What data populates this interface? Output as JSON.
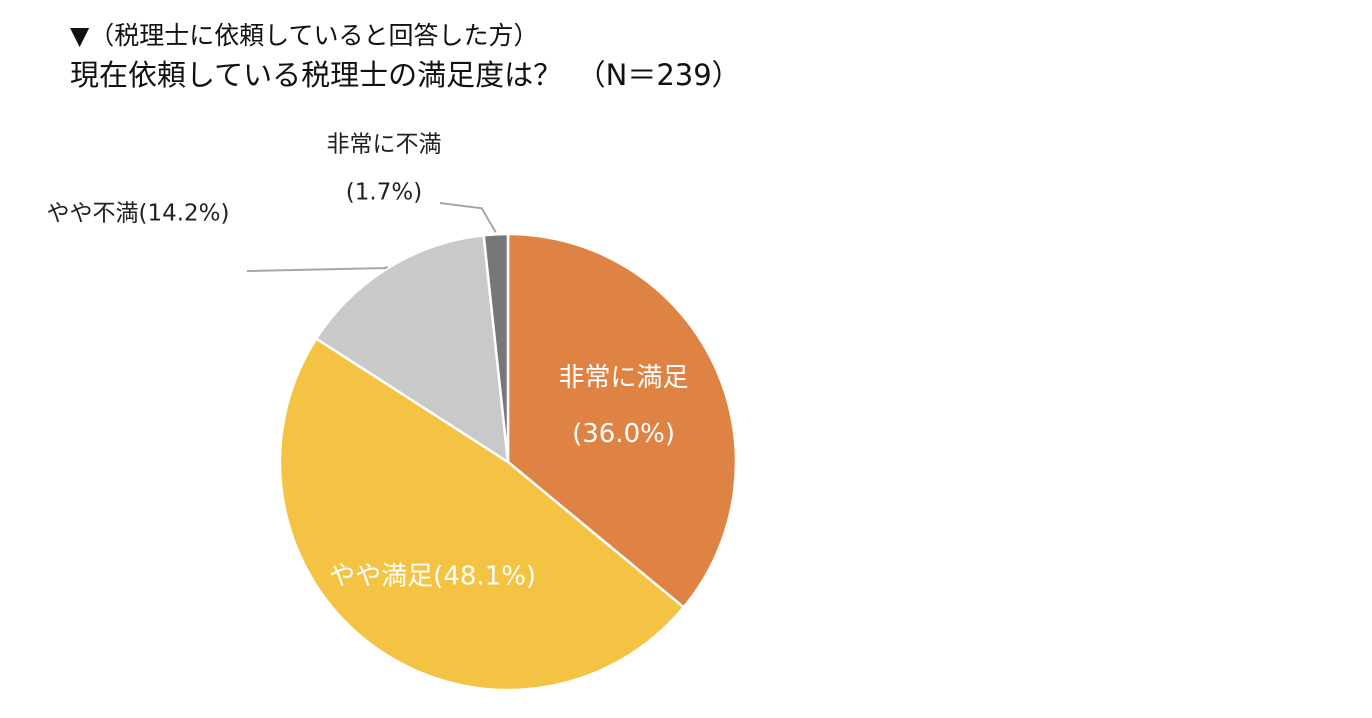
{
  "header": {
    "subtitle": "▼（税理士に依頼していると回答した方）",
    "title": "現在依頼している税理士の満足度は？　（N＝239）"
  },
  "colors": {
    "very_satisfied": "#DE8344",
    "somewhat_satisfied": "#F4C343",
    "somewhat_dissatisfied": "#C9C9C9",
    "very_dissatisfied": "#777777",
    "leader": "#A6A6A6",
    "slice_border": "#ffffff",
    "inside_text": "#ffffff",
    "outside_text": "#222222"
  },
  "chart_data": {
    "type": "pie",
    "title": "現在依頼している税理士の満足度は？　（N＝239）",
    "start": "12 o'clock",
    "direction": "clockwise",
    "slices": [
      {
        "key": "very_satisfied",
        "name": "非常に満足",
        "value": 36.0,
        "pct_text": "(36.0%)",
        "label_inside": true,
        "two_line": true
      },
      {
        "key": "somewhat_satisfied",
        "name": "やや満足",
        "value": 48.1,
        "pct_text": "(48.1%)",
        "label_inside": true,
        "two_line": false
      },
      {
        "key": "somewhat_dissatisfied",
        "name": "やや不満",
        "value": 14.2,
        "pct_text": "(14.2%)",
        "label_inside": false,
        "two_line": false
      },
      {
        "key": "very_dissatisfied",
        "name": "非常に不満",
        "value": 1.7,
        "pct_text": "(1.7%)",
        "label_inside": false,
        "two_line": true
      }
    ],
    "legend": "none",
    "labels_style": "data labels with leader lines for small slices"
  }
}
